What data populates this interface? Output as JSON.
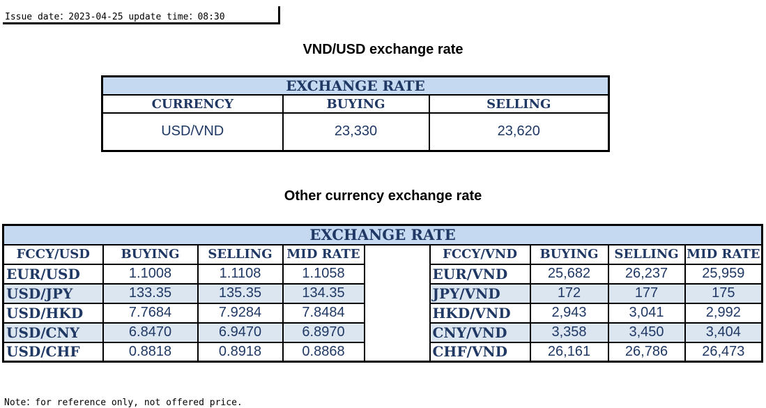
{
  "issue_line": "Issue date：2023-04-25 update time：08:30",
  "vnd_usd": {
    "title": "VND/USD exchange rate",
    "banner": "EXCHANGE RATE",
    "headers": [
      "CURRENCY",
      "BUYING",
      "SELLING"
    ],
    "row": [
      "USD/VND",
      "23,330",
      "23,620"
    ]
  },
  "other": {
    "title": "Other currency exchange rate",
    "banner": "EXCHANGE  RATE",
    "left_headers": [
      "FCCY/USD",
      "BUYING",
      "SELLING",
      "MID RATE"
    ],
    "right_headers": [
      "FCCY/VND",
      "BUYING",
      "SELLING",
      "MID RATE"
    ],
    "left_rows": [
      [
        "EUR/USD",
        "1.1008",
        "1.1108",
        "1.1058"
      ],
      [
        "USD/JPY",
        "133.35",
        "135.35",
        "134.35"
      ],
      [
        "USD/HKD",
        "7.7684",
        "7.9284",
        "7.8484"
      ],
      [
        "USD/CNY",
        "6.8470",
        "6.9470",
        "6.8970"
      ],
      [
        "USD/CHF",
        "0.8818",
        "0.8918",
        "0.8868"
      ]
    ],
    "right_rows": [
      [
        "EUR/VND",
        "25,682",
        "26,237",
        "25,959"
      ],
      [
        "JPY/VND",
        "172",
        "177",
        "175"
      ],
      [
        "HKD/VND",
        "2,943",
        "3,041",
        "2,992"
      ],
      [
        "CNY/VND",
        "3,358",
        "3,450",
        "3,404"
      ],
      [
        "CHF/VND",
        "26,161",
        "26,786",
        "26,473"
      ]
    ]
  },
  "note": "Note：for reference only, not offered price.",
  "colors": {
    "header_fill": "#C5D9F1",
    "row_shade": "#DCE6F1",
    "text": "#1F3864"
  }
}
